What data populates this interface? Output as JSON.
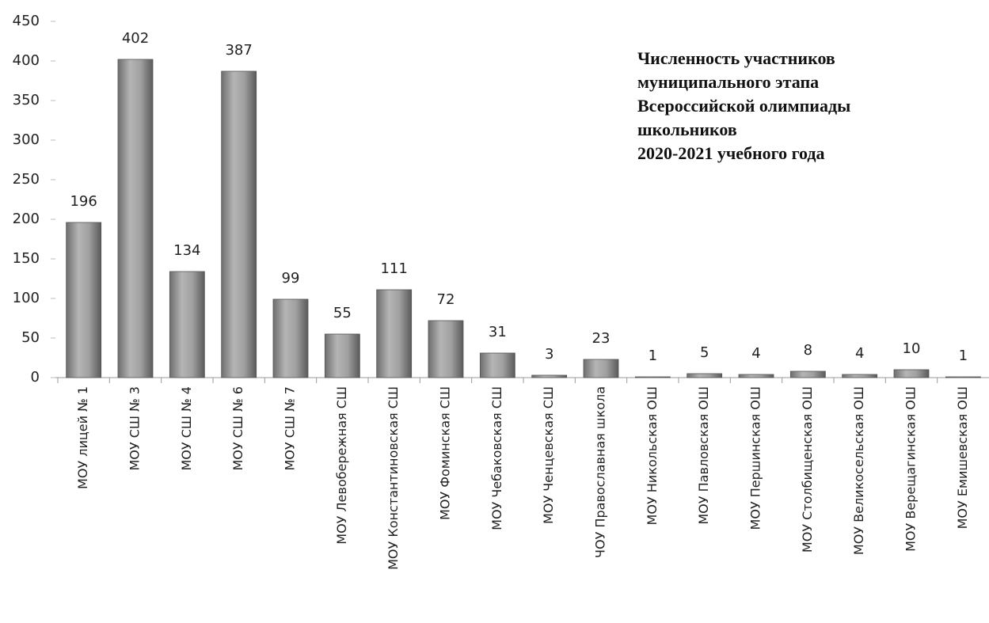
{
  "chart_data": {
    "type": "bar",
    "title": [
      "Численность участников",
      "муниципального этапа",
      "Всероссийской олимпиады",
      "школьников",
      "2020-2021 учебного года"
    ],
    "categories": [
      "МОУ лицей № 1",
      "МОУ СШ № 3",
      "МОУ СШ № 4",
      "МОУ СШ № 6",
      "МОУ СШ № 7",
      "МОУ Левобережная СШ",
      "МОУ Константиновская СШ",
      "МОУ Фоминская СШ",
      "МОУ Чебаковская СШ",
      "МОУ Ченцевская СШ",
      "ЧОУ Православная школа",
      "МОУ Никольская ОШ",
      "МОУ Павловская ОШ",
      "МОУ Першинская ОШ",
      "МОУ Столбищенская ОШ",
      "МОУ Великосельская ОШ",
      "МОУ Верещагинская ОШ",
      "МОУ Емишевская ОШ"
    ],
    "values": [
      196,
      402,
      134,
      387,
      99,
      55,
      111,
      72,
      31,
      3,
      23,
      1,
      5,
      4,
      8,
      4,
      10,
      1
    ],
    "color": "#8a8a8a",
    "ylim": [
      0,
      450
    ],
    "yticks": [
      0,
      50,
      100,
      150,
      200,
      250,
      300,
      350,
      400,
      450
    ],
    "grid": false
  }
}
